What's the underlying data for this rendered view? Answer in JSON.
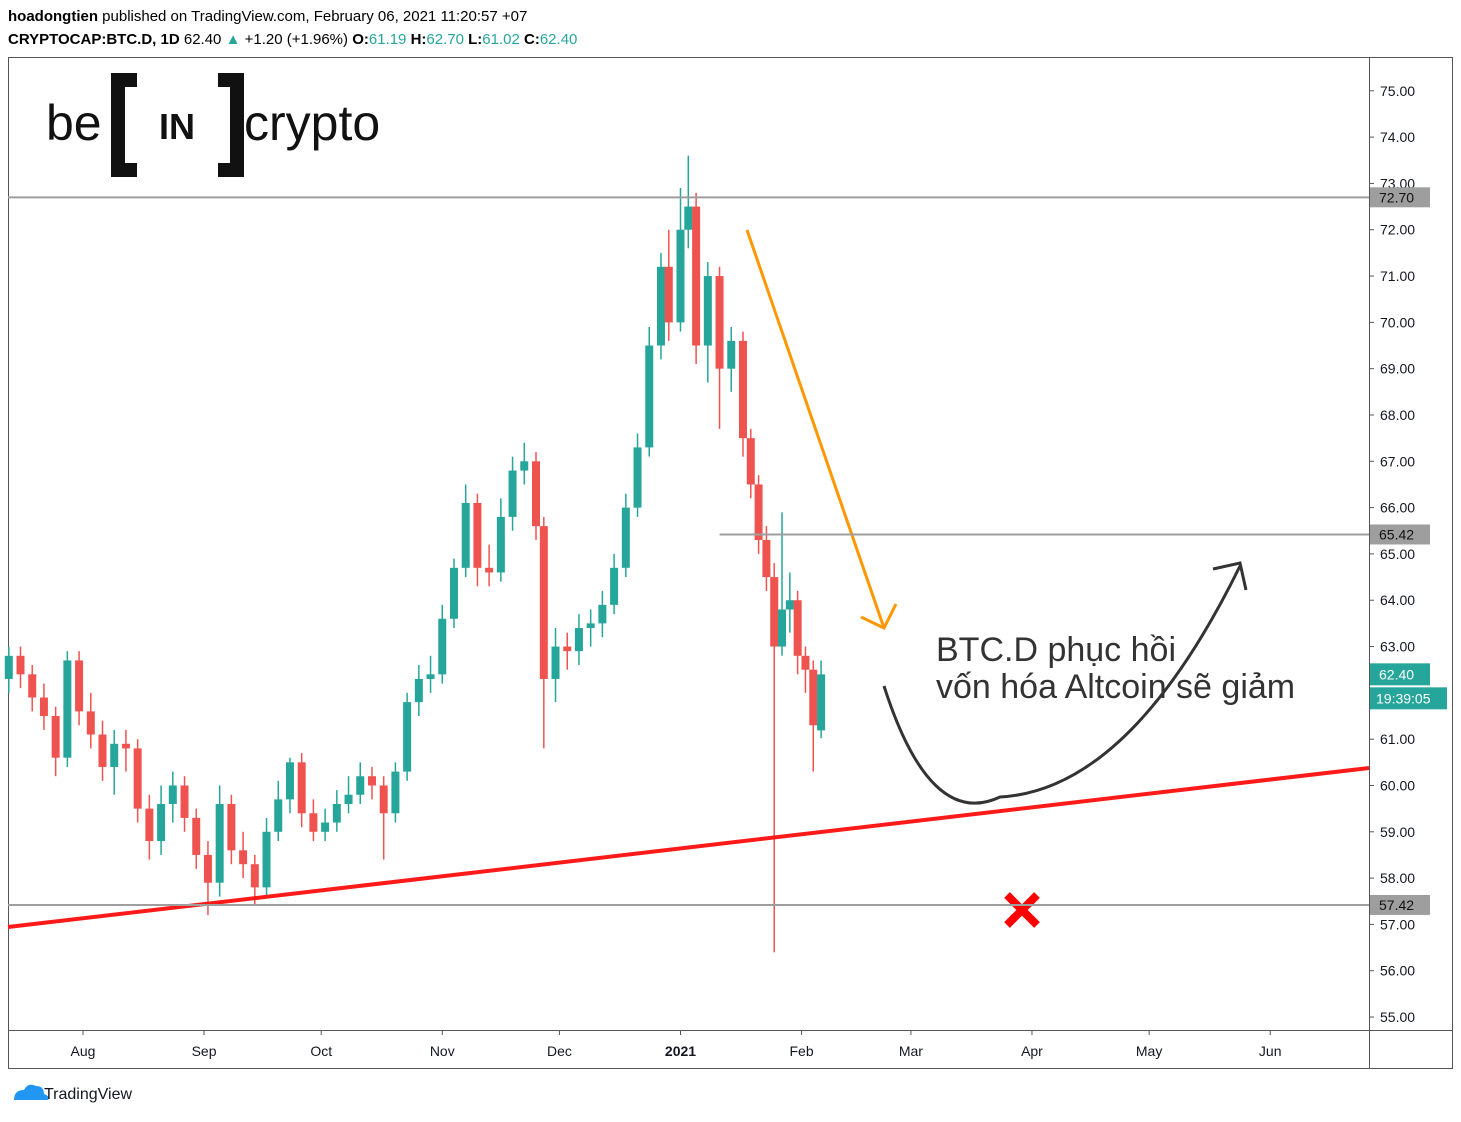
{
  "header": {
    "author": "hoadongtien",
    "published": "published on TradingView.com, February 06, 2021 11:20:57 +07",
    "symbol": "CRYPTOCAP:BTC.D, 1D",
    "last": "62.40",
    "arrow": "▲",
    "change": "+1.20 (+1.96%)",
    "o_label": "O:",
    "o": "61.19",
    "h_label": "H:",
    "h": "62.70",
    "l_label": "L:",
    "l": "61.02",
    "c_label": "C:",
    "c": "62.40"
  },
  "logo": {
    "left": "be",
    "middle": "IN",
    "right": "crypto"
  },
  "footer": "TradingView",
  "chart_data": {
    "type": "candlestick",
    "up_color": "#26a69a",
    "down_color": "#ef5350",
    "xlim": [
      -19.2,
      329.3
    ],
    "xticks": [
      {
        "value": 0,
        "label": "Aug"
      },
      {
        "value": 31,
        "label": "Sep"
      },
      {
        "value": 61,
        "label": "Oct"
      },
      {
        "value": 92,
        "label": "Nov"
      },
      {
        "value": 122,
        "label": "Dec"
      },
      {
        "value": 153,
        "label": "2021"
      },
      {
        "value": 184,
        "label": "Feb"
      },
      {
        "value": 212,
        "label": "Mar"
      },
      {
        "value": 243,
        "label": "Apr"
      },
      {
        "value": 273,
        "label": "May"
      },
      {
        "value": 304,
        "label": "Jun"
      }
    ],
    "ylim": [
      54.72,
      75.73
    ],
    "yticks": [
      {
        "value": 55,
        "label": "55.00"
      },
      {
        "value": 56,
        "label": "56.00"
      },
      {
        "value": 57,
        "label": "57.00"
      },
      {
        "value": 58,
        "label": "58.00"
      },
      {
        "value": 59,
        "label": "59.00"
      },
      {
        "value": 60,
        "label": "60.00"
      },
      {
        "value": 61,
        "label": "61.00"
      },
      {
        "value": 62,
        "label": "62.00"
      },
      {
        "value": 63,
        "label": "63.00"
      },
      {
        "value": 64,
        "label": "64.00"
      },
      {
        "value": 65,
        "label": "65.00"
      },
      {
        "value": 66,
        "label": "66.00"
      },
      {
        "value": 67,
        "label": "67.00"
      },
      {
        "value": 68,
        "label": "68.00"
      },
      {
        "value": 69,
        "label": "69.00"
      },
      {
        "value": 70,
        "label": "70.00"
      },
      {
        "value": 71,
        "label": "71.00"
      },
      {
        "value": 72,
        "label": "72.00"
      },
      {
        "value": 73,
        "label": "73.00"
      },
      {
        "value": 74,
        "label": "74.00"
      },
      {
        "value": 75,
        "label": "75.00"
      }
    ],
    "levels": [
      {
        "value": 72.7,
        "label": "72.70",
        "from": -19.2
      },
      {
        "value": 65.42,
        "label": "65.42",
        "from": 163
      },
      {
        "value": 57.42,
        "label": "57.42",
        "from": -19.2
      }
    ],
    "last_price": {
      "value": 62.4,
      "label": "62.40",
      "countdown": "19:39:05"
    },
    "annotation": [
      "BTC.D phục hồi",
      "vốn hóa Altcoin sẽ giảm"
    ],
    "candles": [
      {
        "x": -19,
        "open": 62.3,
        "high": 63.0,
        "low": 62.0,
        "close": 62.8
      },
      {
        "x": -16,
        "open": 62.8,
        "high": 63.0,
        "low": 62.1,
        "close": 62.4
      },
      {
        "x": -13,
        "open": 62.4,
        "high": 62.6,
        "low": 61.6,
        "close": 61.9
      },
      {
        "x": -10,
        "open": 61.9,
        "high": 62.2,
        "low": 61.2,
        "close": 61.5
      },
      {
        "x": -7,
        "open": 61.5,
        "high": 61.7,
        "low": 60.2,
        "close": 60.6
      },
      {
        "x": -4,
        "open": 60.6,
        "high": 62.9,
        "low": 60.4,
        "close": 62.7
      },
      {
        "x": -1,
        "open": 62.7,
        "high": 62.9,
        "low": 61.3,
        "close": 61.6
      },
      {
        "x": 2,
        "open": 61.6,
        "high": 62.0,
        "low": 60.8,
        "close": 61.1
      },
      {
        "x": 5,
        "open": 61.1,
        "high": 61.4,
        "low": 60.1,
        "close": 60.4
      },
      {
        "x": 8,
        "open": 60.4,
        "high": 61.2,
        "low": 59.8,
        "close": 60.9
      },
      {
        "x": 11,
        "open": 60.9,
        "high": 61.2,
        "low": 60.3,
        "close": 60.8
      },
      {
        "x": 14,
        "open": 60.8,
        "high": 61.0,
        "low": 59.2,
        "close": 59.5
      },
      {
        "x": 17,
        "open": 59.5,
        "high": 59.8,
        "low": 58.4,
        "close": 58.8
      },
      {
        "x": 20,
        "open": 58.8,
        "high": 60.0,
        "low": 58.5,
        "close": 59.6
      },
      {
        "x": 23,
        "open": 59.6,
        "high": 60.3,
        "low": 59.2,
        "close": 60.0
      },
      {
        "x": 26,
        "open": 60.0,
        "high": 60.2,
        "low": 59.0,
        "close": 59.3
      },
      {
        "x": 29,
        "open": 59.3,
        "high": 59.5,
        "low": 58.2,
        "close": 58.5
      },
      {
        "x": 32,
        "open": 58.5,
        "high": 58.8,
        "low": 57.2,
        "close": 57.9
      },
      {
        "x": 35,
        "open": 57.9,
        "high": 60.0,
        "low": 57.6,
        "close": 59.6
      },
      {
        "x": 38,
        "open": 59.6,
        "high": 59.8,
        "low": 58.3,
        "close": 58.6
      },
      {
        "x": 41,
        "open": 58.6,
        "high": 59.0,
        "low": 58.0,
        "close": 58.3
      },
      {
        "x": 44,
        "open": 58.3,
        "high": 58.5,
        "low": 57.4,
        "close": 57.8
      },
      {
        "x": 47,
        "open": 57.8,
        "high": 59.3,
        "low": 57.6,
        "close": 59.0
      },
      {
        "x": 50,
        "open": 59.0,
        "high": 60.1,
        "low": 58.8,
        "close": 59.7
      },
      {
        "x": 53,
        "open": 59.7,
        "high": 60.6,
        "low": 59.4,
        "close": 60.5
      },
      {
        "x": 56,
        "open": 60.5,
        "high": 60.7,
        "low": 59.1,
        "close": 59.4
      },
      {
        "x": 59,
        "open": 59.4,
        "high": 59.7,
        "low": 58.8,
        "close": 59.0
      },
      {
        "x": 62,
        "open": 59.0,
        "high": 59.5,
        "low": 58.8,
        "close": 59.2
      },
      {
        "x": 65,
        "open": 59.2,
        "high": 59.9,
        "low": 59.0,
        "close": 59.6
      },
      {
        "x": 68,
        "open": 59.6,
        "high": 60.2,
        "low": 59.4,
        "close": 59.8
      },
      {
        "x": 71,
        "open": 59.8,
        "high": 60.5,
        "low": 59.6,
        "close": 60.2
      },
      {
        "x": 74,
        "open": 60.2,
        "high": 60.4,
        "low": 59.7,
        "close": 60.0
      },
      {
        "x": 77,
        "open": 60.0,
        "high": 60.2,
        "low": 58.4,
        "close": 59.4
      },
      {
        "x": 80,
        "open": 59.4,
        "high": 60.5,
        "low": 59.2,
        "close": 60.3
      },
      {
        "x": 83,
        "open": 60.3,
        "high": 62.0,
        "low": 60.1,
        "close": 61.8
      },
      {
        "x": 86,
        "open": 61.8,
        "high": 62.6,
        "low": 61.5,
        "close": 62.3
      },
      {
        "x": 89,
        "open": 62.3,
        "high": 62.8,
        "low": 62.0,
        "close": 62.4
      },
      {
        "x": 92,
        "open": 62.4,
        "high": 63.9,
        "low": 62.2,
        "close": 63.6
      },
      {
        "x": 95,
        "open": 63.6,
        "high": 64.9,
        "low": 63.4,
        "close": 64.7
      },
      {
        "x": 98,
        "open": 64.7,
        "high": 66.5,
        "low": 64.5,
        "close": 66.1
      },
      {
        "x": 101,
        "open": 66.1,
        "high": 66.3,
        "low": 64.3,
        "close": 64.7
      },
      {
        "x": 104,
        "open": 64.7,
        "high": 65.2,
        "low": 64.3,
        "close": 64.6
      },
      {
        "x": 107,
        "open": 64.6,
        "high": 66.2,
        "low": 64.4,
        "close": 65.8
      },
      {
        "x": 110,
        "open": 65.8,
        "high": 67.1,
        "low": 65.5,
        "close": 66.8
      },
      {
        "x": 113,
        "open": 66.8,
        "high": 67.4,
        "low": 66.5,
        "close": 67.0
      },
      {
        "x": 116,
        "open": 67.0,
        "high": 67.2,
        "low": 65.3,
        "close": 65.6
      },
      {
        "x": 118,
        "open": 65.6,
        "high": 65.8,
        "low": 60.8,
        "close": 62.3
      },
      {
        "x": 121,
        "open": 62.3,
        "high": 63.4,
        "low": 61.8,
        "close": 63.0
      },
      {
        "x": 124,
        "open": 63.0,
        "high": 63.3,
        "low": 62.5,
        "close": 62.9
      },
      {
        "x": 127,
        "open": 62.9,
        "high": 63.7,
        "low": 62.6,
        "close": 63.4
      },
      {
        "x": 130,
        "open": 63.4,
        "high": 63.8,
        "low": 63.0,
        "close": 63.5
      },
      {
        "x": 133,
        "open": 63.5,
        "high": 64.2,
        "low": 63.2,
        "close": 63.9
      },
      {
        "x": 136,
        "open": 63.9,
        "high": 65.0,
        "low": 63.7,
        "close": 64.7
      },
      {
        "x": 139,
        "open": 64.7,
        "high": 66.3,
        "low": 64.5,
        "close": 66.0
      },
      {
        "x": 142,
        "open": 66.0,
        "high": 67.6,
        "low": 65.8,
        "close": 67.3
      },
      {
        "x": 145,
        "open": 67.3,
        "high": 69.9,
        "low": 67.1,
        "close": 69.5
      },
      {
        "x": 148,
        "open": 69.5,
        "high": 71.5,
        "low": 69.2,
        "close": 71.2
      },
      {
        "x": 150,
        "open": 71.2,
        "high": 72.0,
        "low": 69.6,
        "close": 70.0
      },
      {
        "x": 153,
        "open": 70.0,
        "high": 72.9,
        "low": 69.8,
        "close": 72.0
      },
      {
        "x": 155,
        "open": 72.0,
        "high": 73.6,
        "low": 71.6,
        "close": 72.5
      },
      {
        "x": 157,
        "open": 72.5,
        "high": 72.8,
        "low": 69.1,
        "close": 69.5
      },
      {
        "x": 160,
        "open": 69.5,
        "high": 71.3,
        "low": 68.7,
        "close": 71.0
      },
      {
        "x": 163,
        "open": 71.0,
        "high": 71.2,
        "low": 67.7,
        "close": 69.0
      },
      {
        "x": 166,
        "open": 69.0,
        "high": 69.9,
        "low": 68.5,
        "close": 69.6
      },
      {
        "x": 169,
        "open": 69.6,
        "high": 69.8,
        "low": 67.1,
        "close": 67.5
      },
      {
        "x": 171,
        "open": 67.5,
        "high": 67.7,
        "low": 66.2,
        "close": 66.5
      },
      {
        "x": 173,
        "open": 66.5,
        "high": 66.7,
        "low": 65.0,
        "close": 65.3
      },
      {
        "x": 175,
        "open": 65.3,
        "high": 65.6,
        "low": 64.2,
        "close": 64.5
      },
      {
        "x": 177,
        "open": 64.5,
        "high": 64.8,
        "low": 56.4,
        "close": 63.0
      },
      {
        "x": 179,
        "open": 63.0,
        "high": 65.9,
        "low": 62.8,
        "close": 63.8
      },
      {
        "x": 181,
        "open": 63.8,
        "high": 64.6,
        "low": 63.3,
        "close": 64.0
      },
      {
        "x": 183,
        "open": 64.0,
        "high": 64.2,
        "low": 62.4,
        "close": 62.8
      },
      {
        "x": 185,
        "open": 62.8,
        "high": 63.0,
        "low": 62.0,
        "close": 62.5
      },
      {
        "x": 187,
        "open": 62.5,
        "high": 62.7,
        "low": 60.3,
        "close": 61.3
      },
      {
        "x": 189,
        "open": 61.19,
        "high": 62.7,
        "low": 61.02,
        "close": 62.4
      }
    ]
  }
}
